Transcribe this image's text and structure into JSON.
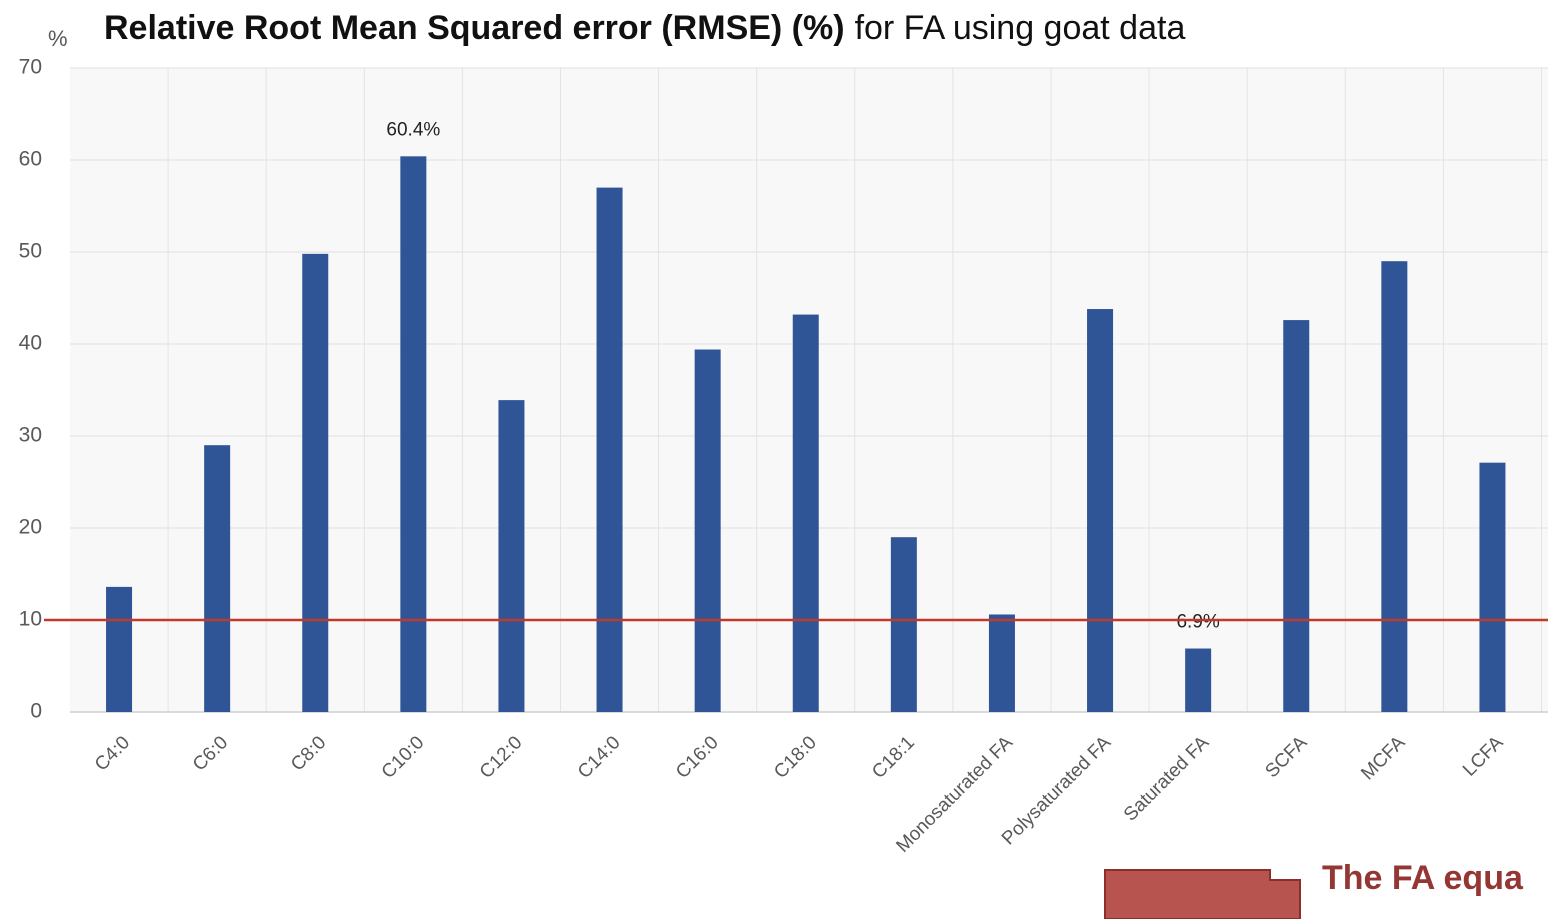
{
  "chart_data": {
    "type": "bar",
    "title": "Relative Root Mean Squared error (RMSE) (%)",
    "subtitle": "for FA using goat data",
    "y_label": "%",
    "categories": [
      "C4:0",
      "C6:0",
      "C8:0",
      "C10:0",
      "C12:0",
      "C14:0",
      "C16:0",
      "C18:0",
      "C18:1",
      "Monosaturated FA",
      "Polysaturated FA",
      "Saturated FA",
      "SCFA",
      "MCFA",
      "LCFA"
    ],
    "values": [
      13.6,
      29.0,
      49.8,
      60.4,
      33.9,
      57.0,
      39.4,
      43.2,
      19.0,
      10.6,
      43.8,
      6.9,
      42.6,
      49.0,
      27.1
    ],
    "value_labels": [
      null,
      null,
      null,
      "60.4%",
      null,
      null,
      null,
      null,
      null,
      null,
      null,
      "6.9%",
      null,
      null,
      null
    ],
    "color": "#2f5597",
    "ylim": [
      0,
      70
    ],
    "yticks": [
      0,
      10,
      20,
      30,
      40,
      50,
      60,
      70
    ],
    "grid": true,
    "reference_line": {
      "value": 10,
      "color": "#c0392b"
    },
    "annotation": "The FA equa"
  }
}
